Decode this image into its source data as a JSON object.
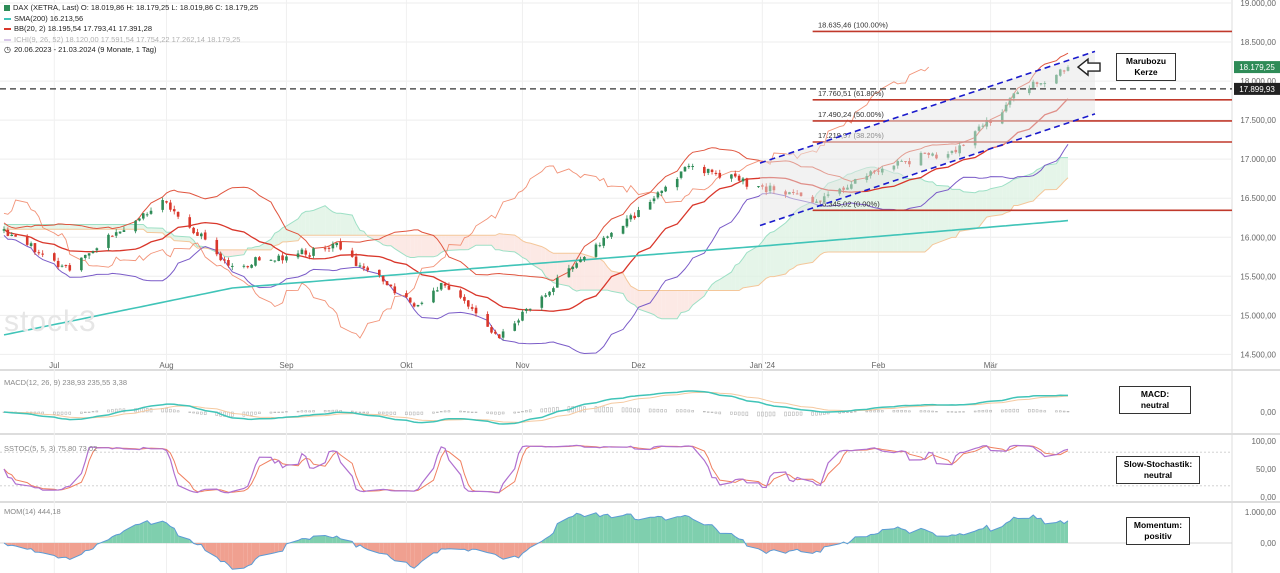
{
  "legend": {
    "line1": "DAX (XETRA, Last)  O: 18.019,86  H: 18.179,25  L: 18.019,86  C: 18.179,25",
    "sma": "SMA(200)  16.213,56",
    "bb": "BB(20, 2)  18.195,54  17.793,41  17.391,28",
    "ichimoku": "ICHI(9, 26, 52)  18.120,00  17.591,54  17.754,22  17.262,14  18.179,25",
    "range": "20.06.2023 - 21.03.2024  (9 Monate, 1 Tag)"
  },
  "sub_legends": {
    "macd": "MACD(12, 26, 9)  238,93  235,55  3,38",
    "sstoc": "SSTOC(5, 5, 3)  75,80  73,02",
    "mom": "MOM(14)  444,18"
  },
  "watermark": "stock3",
  "boxes": {
    "marubozu": [
      "Marubozu",
      "Kerze"
    ],
    "macd": [
      "MACD:",
      "neutral"
    ],
    "stoch": [
      "Slow-Stochastik:",
      "neutral"
    ],
    "mom": [
      "Momentum:",
      "positiv"
    ]
  },
  "fib_labels": {
    "f100": "18.635,46 (100.00%)",
    "f618": "17.760,51 (61.80%)",
    "f50": "17.490,24 (50.00%)",
    "f382": "17.219,97 (38.20%)",
    "f0": "16.345,02 (0.00%)"
  },
  "colors": {
    "up": "#2e8b57",
    "down": "#d9372b",
    "sma": "#40c4b8",
    "bb": "#d9372b",
    "bb_mid": "#ff7f60",
    "ichi_span": "#9060c0",
    "fib": "#c0392b",
    "channel": "#1a1acc",
    "price_label_bg": "#2e8b57"
  },
  "chart_data": {
    "type": "line",
    "title": "DAX (XETRA, Last)",
    "ylim": [
      14300,
      19000
    ],
    "y_ticks": [
      "19.000,00",
      "18.500,00",
      "18.000,00",
      "17.500,00",
      "17.000,00",
      "16.500,00",
      "16.000,00",
      "15.500,00",
      "15.000,00",
      "14.500,00"
    ],
    "x_ticks": [
      "Jul",
      "Aug",
      "Sep",
      "Okt",
      "Nov",
      "Dez",
      "Jan '24",
      "Feb",
      "Mär"
    ],
    "price_labels": {
      "last": "18.179,25",
      "dashed": "17.899,93"
    },
    "close_path": [
      {
        "date": "2023-06-20",
        "value": 16100
      },
      {
        "date": "2023-07-06",
        "value": 15600
      },
      {
        "date": "2023-07-31",
        "value": 16450
      },
      {
        "date": "2023-08-18",
        "value": 15600
      },
      {
        "date": "2023-09-14",
        "value": 15900
      },
      {
        "date": "2023-10-04",
        "value": 15100
      },
      {
        "date": "2023-10-12",
        "value": 15400
      },
      {
        "date": "2023-10-26",
        "value": 14700
      },
      {
        "date": "2023-11-03",
        "value": 15100
      },
      {
        "date": "2023-11-20",
        "value": 15900
      },
      {
        "date": "2023-12-14",
        "value": 16900
      },
      {
        "date": "2024-01-05",
        "value": 16600
      },
      {
        "date": "2024-01-17",
        "value": 16450
      },
      {
        "date": "2024-02-01",
        "value": 16900
      },
      {
        "date": "2024-02-21",
        "value": 17100
      },
      {
        "date": "2024-03-07",
        "value": 17800
      },
      {
        "date": "2024-03-21",
        "value": 18179
      }
    ],
    "sma200_path": [
      {
        "date": "2023-06-20",
        "value": 14750
      },
      {
        "date": "2023-08-18",
        "value": 15350
      },
      {
        "date": "2023-11-01",
        "value": 15650
      },
      {
        "date": "2024-01-05",
        "value": 15900
      },
      {
        "date": "2024-03-21",
        "value": 16213
      }
    ],
    "fibonacci": [
      {
        "level": "100.00%",
        "value": 18635.46
      },
      {
        "level": "61.80%",
        "value": 17760.51
      },
      {
        "level": "50.00%",
        "value": 17490.24
      },
      {
        "level": "38.20%",
        "value": 17219.97
      },
      {
        "level": "0.00%",
        "value": 16345.02
      }
    ],
    "indicators": {
      "macd": {
        "y_ticks": [
          "0,00"
        ]
      },
      "sstoc": {
        "y_ticks": [
          "100,00",
          "50,00",
          "0,00"
        ]
      },
      "mom": {
        "y_ticks": [
          "1.000,00",
          "0,00"
        ]
      }
    }
  }
}
